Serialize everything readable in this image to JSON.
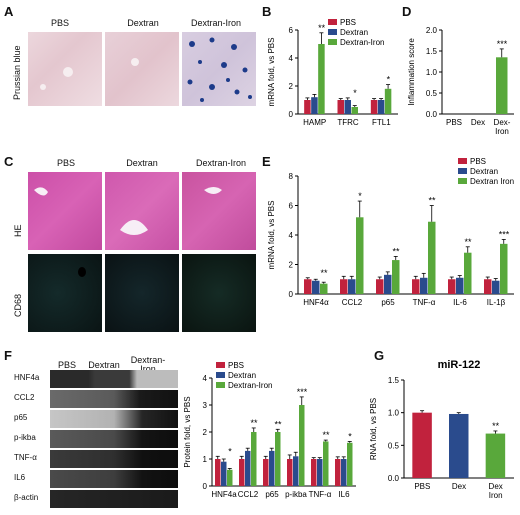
{
  "panels": {
    "A": {
      "label": "A",
      "columns": [
        "PBS",
        "Dextran",
        "Dextran-Iron"
      ],
      "row_label": "Prussian blue"
    },
    "B": {
      "label": "B",
      "chart_data": {
        "type": "bar",
        "ylabel": "mRNA fold, vs PBS",
        "ylim": [
          0,
          6
        ],
        "yticks": [
          0,
          2,
          4,
          6
        ],
        "categories": [
          "HAMP",
          "TFRC",
          "FTL1"
        ],
        "series": [
          {
            "name": "PBS",
            "color": "#c1223d",
            "values": [
              1.0,
              1.0,
              1.0
            ],
            "errors": [
              0.15,
              0.1,
              0.1
            ]
          },
          {
            "name": "Dextran",
            "color": "#2a4b8d",
            "values": [
              1.2,
              1.0,
              1.0
            ],
            "errors": [
              0.2,
              0.15,
              0.1
            ]
          },
          {
            "name": "Dextran-Iron",
            "color": "#59a83b",
            "values": [
              5.0,
              0.5,
              1.8
            ],
            "errors": [
              0.8,
              0.1,
              0.3
            ]
          }
        ],
        "significance": [
          "**",
          "*",
          "*"
        ]
      }
    },
    "D": {
      "label": "D",
      "chart_data": {
        "type": "bar",
        "ylabel": "Inflammation score",
        "ylim": [
          0,
          2
        ],
        "yticks": [
          0.0,
          0.5,
          1.0,
          1.5,
          2.0
        ],
        "categories": [
          "PBS",
          "Dex",
          "Dex-\nIron"
        ],
        "values": [
          0,
          0,
          1.35
        ],
        "errors": [
          0,
          0,
          0.2
        ],
        "color": "#59a83b",
        "significance": [
          "",
          "",
          "***"
        ]
      }
    },
    "C": {
      "label": "C",
      "columns": [
        "PBS",
        "Dextran",
        "Dextran-Iron"
      ],
      "row_labels": [
        "HE",
        "CD68"
      ]
    },
    "E": {
      "label": "E",
      "chart_data": {
        "type": "bar",
        "ylabel": "mRNA fold, vs PBS",
        "ylim": [
          0,
          8
        ],
        "yticks": [
          0,
          2,
          4,
          6,
          8
        ],
        "categories": [
          "HNF4α",
          "CCL2",
          "p65",
          "TNF-α",
          "IL-6",
          "IL-1β"
        ],
        "series": [
          {
            "name": "PBS",
            "color": "#c1223d",
            "values": [
              1.0,
              1.0,
              1.0,
              1.0,
              1.0,
              1.0
            ],
            "errors": [
              0.1,
              0.2,
              0.15,
              0.2,
              0.15,
              0.15
            ]
          },
          {
            "name": "Dextran",
            "color": "#2a4b8d",
            "values": [
              0.9,
              1.0,
              1.3,
              1.1,
              1.1,
              0.9
            ],
            "errors": [
              0.1,
              0.2,
              0.2,
              0.3,
              0.15,
              0.15
            ]
          },
          {
            "name": "Dextran Iron",
            "color": "#59a83b",
            "values": [
              0.7,
              5.2,
              2.3,
              4.9,
              2.8,
              3.4
            ],
            "errors": [
              0.1,
              1.1,
              0.25,
              1.1,
              0.4,
              0.3
            ]
          }
        ],
        "significance": [
          "**",
          "*",
          "**",
          "**",
          "**",
          "***"
        ]
      }
    },
    "F": {
      "label": "F",
      "blot_columns": [
        "PBS",
        "Dextran",
        "Dextran-\nIron"
      ],
      "blot_rows": [
        "HNF4a",
        "CCL2",
        "p65",
        "p-ikba",
        "TNF-α",
        "IL6",
        "β-actin"
      ],
      "chart_data": {
        "type": "bar",
        "ylabel": "Protein fold, vs PBS",
        "ylim": [
          0,
          4
        ],
        "yticks": [
          0,
          1,
          2,
          3,
          4
        ],
        "categories": [
          "HNF4a",
          "CCL2",
          "p65",
          "p-ikba",
          "TNF-α",
          "IL6"
        ],
        "series": [
          {
            "name": "PBS",
            "color": "#c1223d",
            "values": [
              1.0,
              1.0,
              1.0,
              1.0,
              1.0,
              1.0
            ],
            "errors": [
              0.1,
              0.1,
              0.1,
              0.15,
              0.05,
              0.08
            ]
          },
          {
            "name": "Dextran",
            "color": "#2a4b8d",
            "values": [
              0.9,
              1.3,
              1.3,
              1.1,
              1.0,
              1.0
            ],
            "errors": [
              0.1,
              0.1,
              0.1,
              0.15,
              0.05,
              0.08
            ]
          },
          {
            "name": "Dextran-Iron",
            "color": "#59a83b",
            "values": [
              0.6,
              2.0,
              2.0,
              3.0,
              1.65,
              1.6
            ],
            "errors": [
              0.05,
              0.15,
              0.1,
              0.3,
              0.05,
              0.05
            ]
          }
        ],
        "significance": [
          "*",
          "**",
          "**",
          "***",
          "**",
          "*"
        ]
      }
    },
    "G": {
      "label": "G",
      "chart_data": {
        "type": "bar",
        "title": "miR-122",
        "ylabel": "RNA fold, vs PBS",
        "ylim": [
          0,
          1.5
        ],
        "yticks": [
          0.0,
          0.5,
          1.0,
          1.5
        ],
        "categories": [
          "PBS",
          "Dex",
          "Dex\nIron"
        ],
        "values": [
          1.0,
          0.98,
          0.68
        ],
        "errors": [
          0.03,
          0.02,
          0.04
        ],
        "colors": [
          "#c1223d",
          "#2a4b8d",
          "#59a83b"
        ],
        "significance": [
          "",
          "",
          "**"
        ]
      }
    }
  }
}
